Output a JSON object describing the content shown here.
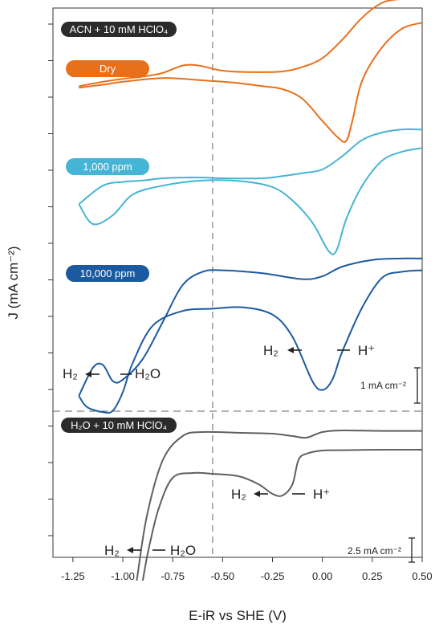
{
  "chart_data": {
    "type": "line",
    "xlabel": "E-iR vs SHE (V)",
    "ylabel": "J (mA cm⁻²)",
    "xlim": [
      -1.35,
      0.5
    ],
    "x_ticks": [
      "-1.25",
      "-1.00",
      "-0.75",
      "-0.50",
      "-0.25",
      "0.00",
      "0.25",
      "0.50"
    ],
    "x_tick_values": [
      -1.25,
      -1.0,
      -0.75,
      -0.5,
      -0.25,
      0.0,
      0.25,
      0.5
    ],
    "reference_line_x": -0.55,
    "panels": [
      {
        "legend": "ACN + 10 mM HClO₄",
        "scale_bar": "1 mA cm⁻²",
        "annotations": [
          {
            "text_left": "H₂",
            "text_right": "H⁺",
            "x": -0.1
          },
          {
            "text_left": "H₂",
            "text_right": "H₂O",
            "x": -1.12
          }
        ],
        "series": [
          {
            "name": "Dry",
            "color": "#e8701a",
            "forward": [
              [
                -1.22,
                -0.08
              ],
              [
                -1.1,
                -0.02
              ],
              [
                -1.0,
                0.02
              ],
              [
                -0.9,
                0.05
              ],
              [
                -0.8,
                0.1
              ],
              [
                -0.7,
                0.2
              ],
              [
                -0.62,
                0.2
              ],
              [
                -0.5,
                0.13
              ],
              [
                -0.35,
                0.11
              ],
              [
                -0.2,
                0.12
              ],
              [
                -0.1,
                0.18
              ],
              [
                0.0,
                0.3
              ],
              [
                0.1,
                0.55
              ],
              [
                0.2,
                0.85
              ],
              [
                0.3,
                1.05
              ],
              [
                0.4,
                1.1
              ],
              [
                0.5,
                1.1
              ]
            ],
            "reverse": [
              [
                0.5,
                0.78
              ],
              [
                0.4,
                0.7
              ],
              [
                0.3,
                0.45
              ],
              [
                0.2,
                0.0
              ],
              [
                0.15,
                -0.55
              ],
              [
                0.12,
                -0.82
              ],
              [
                0.08,
                -0.78
              ],
              [
                0.0,
                -0.55
              ],
              [
                -0.1,
                -0.25
              ],
              [
                -0.2,
                -0.12
              ],
              [
                -0.3,
                -0.08
              ],
              [
                -0.45,
                -0.03
              ],
              [
                -0.6,
                0.0
              ],
              [
                -0.8,
                0.03
              ],
              [
                -1.0,
                -0.02
              ],
              [
                -1.1,
                -0.06
              ],
              [
                -1.22,
                -0.1
              ]
            ]
          },
          {
            "name": "1,000 ppm",
            "color": "#46b4d4",
            "forward": [
              [
                -1.22,
                -0.35
              ],
              [
                -1.1,
                -0.1
              ],
              [
                -1.0,
                -0.05
              ],
              [
                -0.9,
                -0.03
              ],
              [
                -0.8,
                0.0
              ],
              [
                -0.7,
                0.01
              ],
              [
                -0.6,
                0.01
              ],
              [
                -0.5,
                0.0
              ],
              [
                -0.3,
                0.0
              ],
              [
                -0.2,
                0.03
              ],
              [
                -0.1,
                0.07
              ],
              [
                0.0,
                0.12
              ],
              [
                0.1,
                0.3
              ],
              [
                0.2,
                0.52
              ],
              [
                0.3,
                0.62
              ],
              [
                0.4,
                0.66
              ],
              [
                0.5,
                0.66
              ]
            ],
            "reverse": [
              [
                0.5,
                0.41
              ],
              [
                0.4,
                0.36
              ],
              [
                0.3,
                0.24
              ],
              [
                0.2,
                -0.1
              ],
              [
                0.12,
                -0.55
              ],
              [
                0.07,
                -0.98
              ],
              [
                0.03,
                -0.98
              ],
              [
                -0.05,
                -0.6
              ],
              [
                -0.15,
                -0.3
              ],
              [
                -0.25,
                -0.12
              ],
              [
                -0.4,
                -0.04
              ],
              [
                -0.6,
                -0.03
              ],
              [
                -0.8,
                -0.1
              ],
              [
                -0.95,
                -0.22
              ],
              [
                -1.05,
                -0.5
              ],
              [
                -1.15,
                -0.62
              ],
              [
                -1.22,
                -0.35
              ]
            ]
          },
          {
            "name": "10,000 ppm",
            "color": "#1c5aa0",
            "forward": [
              [
                -1.22,
                -1.5
              ],
              [
                -1.15,
                -1.12
              ],
              [
                -1.1,
                -1.08
              ],
              [
                -1.05,
                -1.3
              ],
              [
                -1.0,
                -1.28
              ],
              [
                -0.9,
                -1.0
              ],
              [
                -0.8,
                -0.5
              ],
              [
                -0.7,
                0.0
              ],
              [
                -0.6,
                0.18
              ],
              [
                -0.5,
                0.2
              ],
              [
                -0.3,
                0.16
              ],
              [
                -0.1,
                0.08
              ],
              [
                0.0,
                0.12
              ],
              [
                0.1,
                0.25
              ],
              [
                0.25,
                0.34
              ],
              [
                0.4,
                0.36
              ],
              [
                0.5,
                0.36
              ]
            ],
            "reverse": [
              [
                0.5,
                0.2
              ],
              [
                0.4,
                0.18
              ],
              [
                0.3,
                0.1
              ],
              [
                0.2,
                -0.3
              ],
              [
                0.1,
                -0.9
              ],
              [
                0.05,
                -1.28
              ],
              [
                0.0,
                -1.42
              ],
              [
                -0.05,
                -1.3
              ],
              [
                -0.15,
                -0.7
              ],
              [
                -0.25,
                -0.4
              ],
              [
                -0.4,
                -0.3
              ],
              [
                -0.55,
                -0.32
              ],
              [
                -0.7,
                -0.35
              ],
              [
                -0.85,
                -0.55
              ],
              [
                -0.95,
                -1.05
              ],
              [
                -1.0,
                -1.45
              ],
              [
                -1.05,
                -1.7
              ],
              [
                -1.1,
                -1.72
              ],
              [
                -1.18,
                -1.65
              ],
              [
                -1.22,
                -1.5
              ]
            ]
          }
        ]
      },
      {
        "legend": "H₂O + 10 mM HClO₄",
        "scale_bar": "2.5 mA cm⁻²",
        "annotations": [
          {
            "text_left": "H₂",
            "text_right": "H⁺",
            "x": -0.3
          },
          {
            "text_left": "H₂",
            "text_right": "H₂O",
            "x": -0.98
          }
        ],
        "series": [
          {
            "name": "H₂O + 10 mM HClO₄",
            "color": "#606060",
            "forward": [
              [
                -0.93,
                -8.0
              ],
              [
                -0.88,
                -4.0
              ],
              [
                -0.8,
                -0.5
              ],
              [
                -0.7,
                1.0
              ],
              [
                -0.6,
                1.25
              ],
              [
                -0.4,
                1.2
              ],
              [
                -0.25,
                1.15
              ],
              [
                -0.15,
                1.0
              ],
              [
                -0.08,
                0.9
              ],
              [
                0.0,
                1.25
              ],
              [
                0.1,
                1.35
              ],
              [
                0.3,
                1.32
              ],
              [
                0.5,
                1.32
              ]
            ],
            "reverse": [
              [
                0.5,
                0.15
              ],
              [
                0.3,
                0.15
              ],
              [
                0.1,
                0.12
              ],
              [
                0.0,
                0.1
              ],
              [
                -0.08,
                -0.1
              ],
              [
                -0.12,
                -0.5
              ],
              [
                -0.15,
                -2.0
              ],
              [
                -0.2,
                -2.7
              ],
              [
                -0.25,
                -2.6
              ],
              [
                -0.32,
                -2.0
              ],
              [
                -0.42,
                -1.5
              ],
              [
                -0.55,
                -1.35
              ],
              [
                -0.65,
                -1.3
              ],
              [
                -0.75,
                -1.6
              ],
              [
                -0.82,
                -3.5
              ],
              [
                -0.87,
                -6.0
              ],
              [
                -0.9,
                -8.0
              ]
            ]
          }
        ]
      }
    ]
  },
  "colors": {
    "pill_acn": "#2b2b2b",
    "pill_h2o": "#2b2b2b"
  }
}
